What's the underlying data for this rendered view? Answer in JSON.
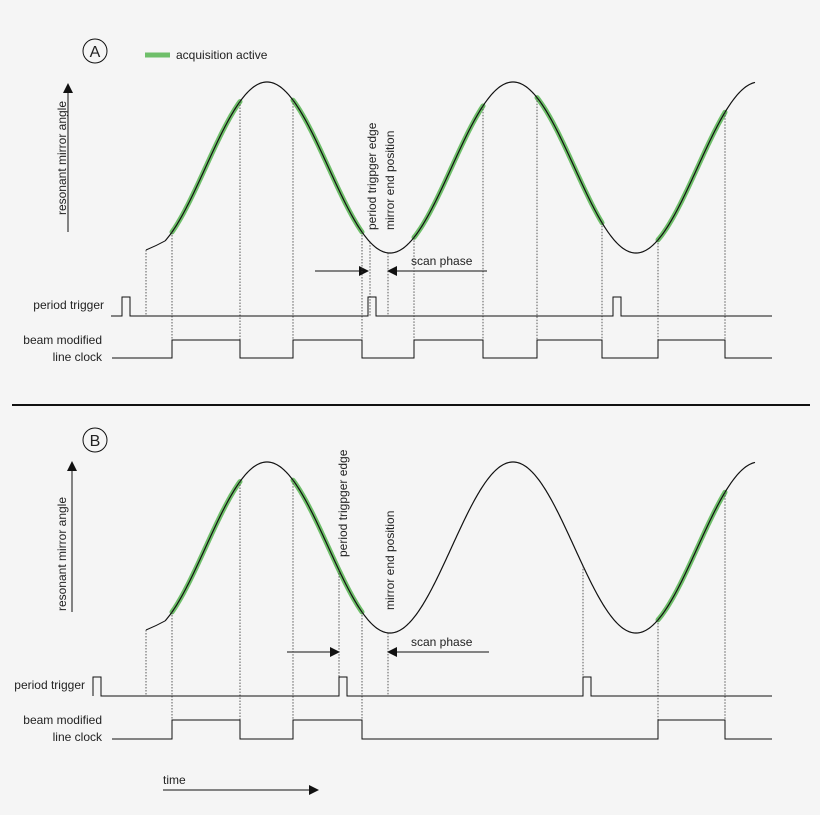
{
  "legend": {
    "label": "acquisition active",
    "color": "#6fbf6a"
  },
  "panels": [
    {
      "marker": "A",
      "axis_label": "resonant mirror angle",
      "trigger_label": "period trigger",
      "clock_label_1": "beam modified",
      "clock_label_2": "line clock",
      "edge_label": "period trigpger edge",
      "end_label": "mirror end position",
      "phase_label": "scan phase"
    },
    {
      "marker": "B",
      "axis_label": "resonant mirror angle",
      "trigger_label": "period trigger",
      "clock_label_1": "beam modified",
      "clock_label_2": "line clock",
      "edge_label": "period trigpger edge",
      "end_label": "mirror end position",
      "phase_label": "scan phase"
    }
  ],
  "time_label": "time",
  "colors": {
    "line": "#111111",
    "acquisition": "#6fbf6a",
    "background": "#f5f5f5"
  }
}
